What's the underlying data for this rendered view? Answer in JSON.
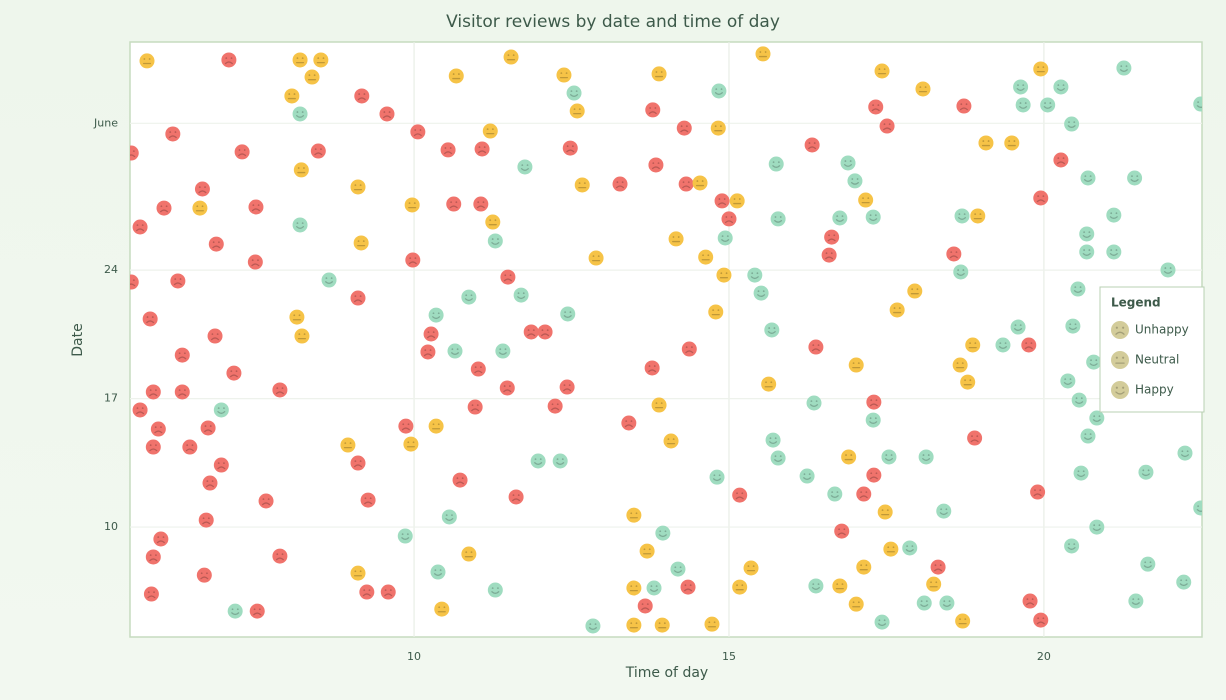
{
  "chart_data": {
    "type": "scatter",
    "title": "Visitor reviews by date and time of day",
    "x_label": "Time of day",
    "y_label": "Date",
    "xlim": [
      5.49,
      22.51
    ],
    "ylim": [
      4.01,
      36.43
    ],
    "xticks": [
      10,
      15,
      20
    ],
    "yticks": [
      10,
      17,
      24,
      {
        "value": 32,
        "label": "June"
      }
    ],
    "grid": true,
    "legend_title": "Legend",
    "legend_position": "right",
    "legend_icon_color": "#d3cc9a",
    "series": [
      {
        "name": "Unhappy",
        "color": "#f0736c",
        "x": [
          7.06,
          5.51,
          6.17,
          7.27,
          5.65,
          6.03,
          6.64,
          7.49,
          6.86,
          5.51,
          6.25,
          7.48,
          5.81,
          6.84,
          6.32,
          7.14,
          5.86,
          6.32,
          7.87,
          5.65,
          5.94,
          6.73,
          5.86,
          6.44,
          6.94,
          6.76,
          6.7,
          5.98,
          5.86,
          7.87,
          7.65,
          6.67,
          5.83,
          7.51,
          9.17,
          9.57,
          10.06,
          8.48,
          10.54,
          11.08,
          10.63,
          11.06,
          9.98,
          9.11,
          11.49,
          10.27,
          10.22,
          11.86,
          12.08,
          11.02,
          11.48,
          10.97,
          9.87,
          9.11,
          10.73,
          9.27,
          11.62,
          9.25,
          9.59,
          12.24,
          12.43,
          13.78,
          13.41,
          12.48,
          13.27,
          13.79,
          13.84,
          14.29,
          14.32,
          14.89,
          15.0,
          14.37,
          13.67,
          14.35,
          15.17,
          16.32,
          16.63,
          16.59,
          16.38,
          17.33,
          17.51,
          17.3,
          17.3,
          17.14,
          16.79,
          18.32,
          18.73,
          18.57,
          18.9,
          19.95,
          20.27,
          19.76,
          19.9,
          19.78,
          19.95
        ],
        "y": [
          35.45,
          30.38,
          31.42,
          30.44,
          26.35,
          27.38,
          28.42,
          27.44,
          25.42,
          23.35,
          23.41,
          24.44,
          21.34,
          20.41,
          19.37,
          18.39,
          17.36,
          17.36,
          17.47,
          16.38,
          15.34,
          15.4,
          14.36,
          14.36,
          13.38,
          12.4,
          10.38,
          9.35,
          8.37,
          8.42,
          11.42,
          7.38,
          6.35,
          5.42,
          33.49,
          32.51,
          31.53,
          30.49,
          30.55,
          30.6,
          27.6,
          27.6,
          24.55,
          22.48,
          23.62,
          20.52,
          19.54,
          20.63,
          20.63,
          18.61,
          17.58,
          16.54,
          15.5,
          13.49,
          12.56,
          11.47,
          11.64,
          6.46,
          6.46,
          16.59,
          17.63,
          18.67,
          15.67,
          30.65,
          28.69,
          32.73,
          29.73,
          31.74,
          28.69,
          27.77,
          26.79,
          19.7,
          5.7,
          6.73,
          11.74,
          30.82,
          25.8,
          24.82,
          19.81,
          32.89,
          31.85,
          16.81,
          12.83,
          11.8,
          9.78,
          7.82,
          32.94,
          24.88,
          14.85,
          27.93,
          30.0,
          19.92,
          11.91,
          5.97,
          4.93
        ]
      },
      {
        "name": "Neutral",
        "color": "#f6c347",
        "x": [
          5.76,
          8.19,
          8.52,
          8.38,
          8.06,
          8.21,
          6.6,
          9.11,
          9.16,
          8.14,
          8.22,
          9.97,
          10.67,
          11.54,
          11.21,
          11.25,
          12.38,
          12.59,
          12.67,
          12.89,
          13.89,
          14.16,
          14.54,
          14.83,
          15.13,
          14.63,
          14.92,
          14.79,
          15.54,
          17.43,
          18.08,
          17.17,
          19.08,
          19.49,
          18.95,
          17.95,
          17.67,
          19.95,
          18.87,
          18.67,
          18.79,
          17.02,
          15.63,
          13.89,
          14.08,
          8.95,
          9.95,
          10.35,
          10.87,
          9.11,
          10.44,
          13.49,
          13.7,
          13.49,
          13.49,
          13.94,
          14.73,
          15.17,
          15.35,
          16.9,
          17.48,
          17.57,
          17.14,
          16.76,
          17.02,
          18.25,
          18.71
        ],
        "y": [
          35.4,
          35.45,
          35.45,
          34.52,
          33.49,
          29.46,
          27.38,
          28.53,
          25.48,
          21.44,
          20.41,
          27.55,
          34.58,
          35.61,
          31.58,
          26.62,
          34.63,
          32.67,
          28.64,
          24.66,
          34.69,
          25.7,
          28.75,
          31.74,
          27.77,
          24.71,
          23.73,
          21.72,
          35.78,
          34.85,
          33.87,
          27.82,
          30.93,
          30.93,
          26.95,
          22.86,
          21.83,
          34.96,
          19.92,
          18.83,
          17.9,
          18.83,
          17.79,
          16.65,
          14.69,
          14.47,
          14.52,
          15.5,
          8.53,
          7.49,
          5.53,
          10.65,
          8.69,
          6.68,
          4.66,
          4.66,
          4.71,
          6.73,
          7.77,
          13.82,
          10.82,
          8.8,
          7.82,
          6.79,
          5.8,
          6.89,
          4.88
        ]
      },
      {
        "name": "Happy",
        "color": "#9fdcc0",
        "x": [
          8.19,
          8.19,
          8.65,
          6.94,
          7.16,
          10.35,
          10.87,
          11.29,
          11.7,
          11.76,
          12.54,
          12.44,
          11.41,
          10.65,
          11.97,
          12.32,
          10.56,
          9.86,
          10.38,
          11.29,
          12.84,
          13.81,
          13.95,
          14.19,
          14.84,
          14.94,
          15.41,
          15.51,
          15.78,
          15.75,
          15.68,
          15.7,
          15.78,
          16.35,
          16.24,
          16.68,
          16.89,
          17.0,
          16.76,
          17.29,
          17.29,
          17.54,
          18.13,
          17.87,
          18.41,
          18.1,
          18.46,
          17.43,
          16.38,
          14.81,
          18.7,
          18.68,
          19.63,
          19.67,
          20.06,
          20.27,
          20.44,
          20.7,
          20.68,
          20.68,
          20.54,
          20.46,
          21.11,
          21.11,
          21.27,
          21.44,
          21.97,
          19.35,
          19.59,
          20.38,
          20.56,
          20.84,
          20.7,
          20.59,
          20.84,
          20.44,
          21.65,
          21.46,
          22.22,
          21.62,
          22.24,
          22.49,
          22.49,
          20.79
        ],
        "y": [
          32.51,
          26.46,
          23.46,
          16.38,
          5.42,
          21.55,
          22.53,
          25.59,
          22.64,
          29.62,
          33.65,
          21.61,
          19.59,
          19.59,
          13.6,
          13.6,
          10.55,
          9.51,
          7.55,
          6.57,
          4.61,
          6.68,
          9.67,
          7.71,
          33.76,
          25.75,
          23.73,
          22.75,
          26.79,
          29.78,
          20.74,
          14.74,
          13.76,
          16.76,
          12.78,
          11.8,
          29.84,
          28.86,
          26.84,
          26.89,
          15.83,
          13.82,
          13.82,
          8.86,
          10.87,
          5.86,
          5.86,
          4.82,
          6.79,
          12.72,
          26.95,
          23.9,
          33.98,
          33.0,
          33.0,
          33.98,
          31.96,
          29.02,
          25.97,
          24.99,
          22.97,
          20.95,
          27.0,
          24.99,
          35.01,
          29.02,
          24.01,
          19.92,
          20.9,
          17.96,
          16.92,
          15.94,
          14.96,
          12.94,
          10.0,
          8.97,
          7.98,
          5.97,
          7.0,
          12.99,
          14.03,
          11.04,
          33.05,
          18.99
        ]
      }
    ]
  }
}
